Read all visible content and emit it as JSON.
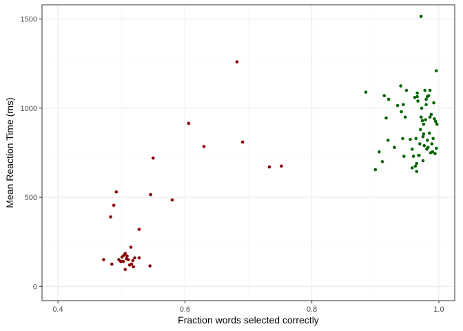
{
  "chart_data": {
    "type": "scatter",
    "title": "",
    "xlabel": "Fraction words selected correctly",
    "ylabel": "Mean Reaction Time (ms)",
    "xlim": [
      0.375,
      1.025
    ],
    "ylim": [
      -80,
      1580
    ],
    "xticks": [
      0.4,
      0.6,
      0.8,
      1.0
    ],
    "xtick_labels": [
      "0.4",
      "0.6",
      "0.8",
      "1.0"
    ],
    "yticks": [
      0,
      500,
      1000,
      1500
    ],
    "ytick_labels": [
      "0",
      "500",
      "1000",
      "1500"
    ],
    "grid": true,
    "legend": "none",
    "colors": {
      "group1": "#8b0000",
      "group2": "#006400",
      "panel_border": "#333333",
      "grid_major": "#ebebeb",
      "grid_minor": "#f5f5f5"
    },
    "series": [
      {
        "color": "#8b0000",
        "points": [
          [
            0.472,
            150
          ],
          [
            0.485,
            125
          ],
          [
            0.483,
            390
          ],
          [
            0.488,
            455
          ],
          [
            0.492,
            530
          ],
          [
            0.496,
            150
          ],
          [
            0.499,
            140
          ],
          [
            0.501,
            165
          ],
          [
            0.503,
            140
          ],
          [
            0.504,
            175
          ],
          [
            0.506,
            185
          ],
          [
            0.506,
            95
          ],
          [
            0.508,
            155
          ],
          [
            0.509,
            170
          ],
          [
            0.511,
            150
          ],
          [
            0.513,
            120
          ],
          [
            0.515,
            220
          ],
          [
            0.516,
            125
          ],
          [
            0.518,
            145
          ],
          [
            0.519,
            110
          ],
          [
            0.521,
            160
          ],
          [
            0.528,
            160
          ],
          [
            0.528,
            320
          ],
          [
            0.545,
            115
          ],
          [
            0.546,
            515
          ],
          [
            0.55,
            720
          ],
          [
            0.58,
            485
          ],
          [
            0.606,
            915
          ],
          [
            0.63,
            785
          ],
          [
            0.682,
            1260
          ],
          [
            0.691,
            810
          ],
          [
            0.733,
            670
          ],
          [
            0.752,
            675
          ]
        ]
      },
      {
        "color": "#006400",
        "points": [
          [
            0.885,
            1090
          ],
          [
            0.9,
            655
          ],
          [
            0.906,
            755
          ],
          [
            0.911,
            700
          ],
          [
            0.914,
            1070
          ],
          [
            0.917,
            945
          ],
          [
            0.92,
            820
          ],
          [
            0.921,
            1050
          ],
          [
            0.93,
            780
          ],
          [
            0.935,
            1015
          ],
          [
            0.94,
            1125
          ],
          [
            0.941,
            980
          ],
          [
            0.943,
            830
          ],
          [
            0.944,
            1020
          ],
          [
            0.945,
            730
          ],
          [
            0.947,
            950
          ],
          [
            0.949,
            1100
          ],
          [
            0.955,
            825
          ],
          [
            0.958,
            665
          ],
          [
            0.958,
            770
          ],
          [
            0.96,
            730
          ],
          [
            0.962,
            1060
          ],
          [
            0.963,
            675
          ],
          [
            0.964,
            830
          ],
          [
            0.965,
            690
          ],
          [
            0.965,
            645
          ],
          [
            0.966,
            1065
          ],
          [
            0.966,
            1085
          ],
          [
            0.967,
            1040
          ],
          [
            0.968,
            735
          ],
          [
            0.969,
            735
          ],
          [
            0.97,
            800
          ],
          [
            0.971,
            880
          ],
          [
            0.972,
            1515
          ],
          [
            0.972,
            950
          ],
          [
            0.973,
            1000
          ],
          [
            0.974,
            930
          ],
          [
            0.975,
            840
          ],
          [
            0.975,
            705
          ],
          [
            0.976,
            910
          ],
          [
            0.976,
            855
          ],
          [
            0.977,
            790
          ],
          [
            0.978,
            1100
          ],
          [
            0.979,
            935
          ],
          [
            0.98,
            1020
          ],
          [
            0.98,
            1050
          ],
          [
            0.981,
            770
          ],
          [
            0.982,
            1065
          ],
          [
            0.982,
            820
          ],
          [
            0.983,
            780
          ],
          [
            0.984,
            1070
          ],
          [
            0.985,
            860
          ],
          [
            0.986,
            950
          ],
          [
            0.986,
            1100
          ],
          [
            0.987,
            750
          ],
          [
            0.988,
            965
          ],
          [
            0.989,
            800
          ],
          [
            0.99,
            755
          ],
          [
            0.991,
            830
          ],
          [
            0.992,
            1030
          ],
          [
            0.993,
            940
          ],
          [
            0.994,
            745
          ],
          [
            0.995,
            925
          ],
          [
            0.996,
            775
          ],
          [
            0.996,
            1210
          ],
          [
            0.997,
            910
          ]
        ]
      }
    ]
  }
}
